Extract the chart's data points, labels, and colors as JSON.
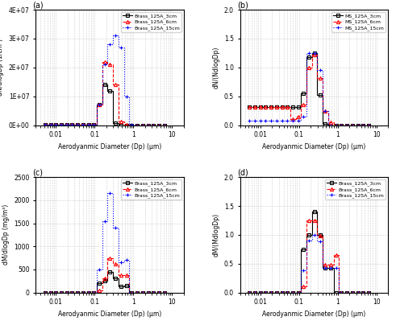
{
  "subplot_labels": [
    "(a)",
    "(b)",
    "(c)",
    "(d)"
  ],
  "xlabel": "Aerodyanmic Diameter (Dp) (μm)",
  "panel_a": {
    "ylabel": "dN/dlogDp (1/cm³)",
    "ylim": [
      0,
      40000000.0
    ],
    "yticks": [
      0,
      10000000.0,
      20000000.0,
      30000000.0,
      40000000.0
    ],
    "ytick_labels": [
      "0E+00",
      "1E+07",
      "2E+07",
      "3E+07",
      "4E+07"
    ],
    "series": {
      "3cm": {
        "label": "Brass_125A_3cm",
        "color": "black",
        "linestyle": "-",
        "marker": "s",
        "x": [
          0.00523,
          0.00722,
          0.00997,
          0.01376,
          0.019,
          0.02623,
          0.03622,
          0.05001,
          0.06903,
          0.09531,
          0.1316,
          0.1816,
          0.2507,
          0.3461,
          0.4779,
          0.6598,
          0.9108,
          1.257,
          1.736,
          2.397,
          3.31,
          4.568,
          6.309
        ],
        "y": [
          200000.0,
          200000.0,
          200000.0,
          200000.0,
          200000.0,
          200000.0,
          200000.0,
          200000.0,
          200000.0,
          200000.0,
          7000000.0,
          14000000.0,
          12000000.0,
          700000.0,
          0,
          0,
          0,
          0,
          0,
          0,
          0,
          0,
          0
        ]
      },
      "6cm": {
        "label": "Brass_125A_6cm",
        "color": "red",
        "linestyle": "--",
        "marker": "^",
        "x": [
          0.00523,
          0.00722,
          0.00997,
          0.01376,
          0.019,
          0.02623,
          0.03622,
          0.05001,
          0.06903,
          0.09531,
          0.1316,
          0.1816,
          0.2507,
          0.3461,
          0.4779,
          0.6598,
          0.9108,
          1.257,
          1.736,
          2.397,
          3.31,
          4.568,
          6.309
        ],
        "y": [
          200000.0,
          200000.0,
          200000.0,
          200000.0,
          200000.0,
          200000.0,
          200000.0,
          200000.0,
          200000.0,
          200000.0,
          7000000.0,
          22000000.0,
          21000000.0,
          14000000.0,
          1400000.0,
          200000.0,
          0,
          0,
          0,
          0,
          0,
          0,
          0
        ]
      },
      "15cm": {
        "label": "Brass_125A_15cm",
        "color": "blue",
        "linestyle": ":",
        "marker": "+",
        "x": [
          0.00523,
          0.00722,
          0.00997,
          0.01376,
          0.019,
          0.02623,
          0.03622,
          0.05001,
          0.06903,
          0.09531,
          0.1316,
          0.1816,
          0.2507,
          0.3461,
          0.4779,
          0.6598,
          0.9108,
          1.257,
          1.736,
          2.397,
          3.31,
          4.568,
          6.309
        ],
        "y": [
          200000.0,
          200000.0,
          200000.0,
          200000.0,
          200000.0,
          200000.0,
          200000.0,
          200000.0,
          200000.0,
          200000.0,
          7000000.0,
          21000000.0,
          28000000.0,
          31000000.0,
          27000000.0,
          10000000.0,
          300000.0,
          0,
          0,
          0,
          0,
          0,
          0
        ]
      }
    }
  },
  "panel_b": {
    "ylabel": "dN/(NdlogDp)",
    "ylim": [
      0,
      2.0
    ],
    "yticks": [
      0.0,
      0.5,
      1.0,
      1.5,
      2.0
    ],
    "series": {
      "3cm": {
        "label": "MS_125A_3cm",
        "color": "black",
        "linestyle": "-",
        "marker": "s",
        "x": [
          0.00523,
          0.00722,
          0.00997,
          0.01376,
          0.019,
          0.02623,
          0.03622,
          0.05001,
          0.06903,
          0.09531,
          0.1316,
          0.1816,
          0.2507,
          0.3461,
          0.4779,
          0.6598,
          0.9108,
          1.257,
          1.736,
          2.397,
          3.31,
          4.568,
          6.309
        ],
        "y": [
          0.32,
          0.32,
          0.32,
          0.32,
          0.32,
          0.32,
          0.32,
          0.32,
          0.32,
          0.32,
          0.55,
          1.18,
          1.25,
          0.52,
          0.02,
          0,
          0,
          0,
          0,
          0,
          0,
          0,
          0
        ]
      },
      "6cm": {
        "label": "MS_125A_6cm",
        "color": "red",
        "linestyle": "--",
        "marker": "^",
        "x": [
          0.00523,
          0.00722,
          0.00997,
          0.01376,
          0.019,
          0.02623,
          0.03622,
          0.05001,
          0.06903,
          0.09531,
          0.1316,
          0.1816,
          0.2507,
          0.3461,
          0.4779,
          0.6598,
          0.9108,
          1.257,
          1.736,
          2.397,
          3.31,
          4.568,
          6.309
        ],
        "y": [
          0.32,
          0.32,
          0.32,
          0.32,
          0.32,
          0.32,
          0.32,
          0.32,
          0.1,
          0.15,
          0.35,
          1.0,
          1.22,
          0.82,
          0.25,
          0.05,
          0,
          0,
          0,
          0,
          0,
          0,
          0
        ]
      },
      "15cm": {
        "label": "MS_125A_15cm",
        "color": "blue",
        "linestyle": ":",
        "marker": "+",
        "x": [
          0.00523,
          0.00722,
          0.00997,
          0.01376,
          0.019,
          0.02623,
          0.03622,
          0.05001,
          0.06903,
          0.09531,
          0.1316,
          0.1816,
          0.2507,
          0.3461,
          0.4779,
          0.6598,
          0.9108,
          1.257,
          1.736,
          2.397,
          3.31,
          4.568,
          6.309
        ],
        "y": [
          0.08,
          0.08,
          0.08,
          0.08,
          0.08,
          0.08,
          0.08,
          0.08,
          0.08,
          0.08,
          0.15,
          1.25,
          1.25,
          0.95,
          0.25,
          0.0,
          0,
          0,
          0,
          0,
          0,
          0,
          0
        ]
      }
    }
  },
  "panel_c": {
    "ylabel": "dM/dlogDp (mg/m³)",
    "ylim": [
      0,
      2500
    ],
    "yticks": [
      0,
      500,
      1000,
      1500,
      2000,
      2500
    ],
    "series": {
      "3cm": {
        "label": "Brass_125A_3cm",
        "color": "black",
        "linestyle": "-",
        "marker": "s",
        "x": [
          0.00523,
          0.00722,
          0.00997,
          0.01376,
          0.019,
          0.02623,
          0.03622,
          0.05001,
          0.06903,
          0.09531,
          0.1316,
          0.1816,
          0.2507,
          0.3461,
          0.4779,
          0.6598,
          0.9108,
          1.257,
          1.736,
          2.397,
          3.31,
          4.568,
          6.309
        ],
        "y": [
          0,
          0,
          0,
          0,
          0,
          0,
          0,
          0,
          0,
          0,
          200,
          250,
          450,
          300,
          125,
          150,
          0,
          0,
          0,
          0,
          0,
          0,
          0
        ]
      },
      "6cm": {
        "label": "Brass_125A_6cm",
        "color": "red",
        "linestyle": "--",
        "marker": "^",
        "x": [
          0.00523,
          0.00722,
          0.00997,
          0.01376,
          0.019,
          0.02623,
          0.03622,
          0.05001,
          0.06903,
          0.09531,
          0.1316,
          0.1816,
          0.2507,
          0.3461,
          0.4779,
          0.6598,
          0.9108,
          1.257,
          1.736,
          2.397,
          3.31,
          4.568,
          6.309
        ],
        "y": [
          0,
          0,
          0,
          0,
          0,
          0,
          0,
          0,
          0,
          0,
          50,
          300,
          750,
          620,
          380,
          380,
          0,
          0,
          0,
          0,
          0,
          0,
          0
        ]
      },
      "15cm": {
        "label": "Brass_125A_15cm",
        "color": "blue",
        "linestyle": ":",
        "marker": "+",
        "x": [
          0.00523,
          0.00722,
          0.00997,
          0.01376,
          0.019,
          0.02623,
          0.03622,
          0.05001,
          0.06903,
          0.09531,
          0.1316,
          0.1816,
          0.2507,
          0.3461,
          0.4779,
          0.6598,
          0.9108,
          1.257,
          1.736,
          2.397,
          3.31,
          4.568,
          6.309
        ],
        "y": [
          0,
          0,
          0,
          0,
          0,
          0,
          0,
          0,
          0,
          0,
          500,
          1550,
          2150,
          1400,
          650,
          700,
          0,
          0,
          0,
          0,
          0,
          0,
          0
        ]
      }
    }
  },
  "panel_d": {
    "ylabel": "dM/(MdlogDp)",
    "ylim": [
      0,
      2.0
    ],
    "yticks": [
      0.0,
      0.5,
      1.0,
      1.5,
      2.0
    ],
    "series": {
      "3cm": {
        "label": "Brass_125A_3cm",
        "color": "black",
        "linestyle": "-",
        "marker": "s",
        "x": [
          0.00523,
          0.00722,
          0.00997,
          0.01376,
          0.019,
          0.02623,
          0.03622,
          0.05001,
          0.06903,
          0.09531,
          0.1316,
          0.1816,
          0.2507,
          0.3461,
          0.4779,
          0.6598,
          0.9108,
          1.257,
          1.736,
          2.397,
          3.31,
          4.568,
          6.309
        ],
        "y": [
          0,
          0,
          0,
          0,
          0,
          0,
          0,
          0,
          0,
          0,
          0.75,
          1.0,
          1.4,
          1.0,
          0.42,
          0.42,
          0,
          0,
          0,
          0,
          0,
          0,
          0
        ]
      },
      "6cm": {
        "label": "Brass_125A_6cm",
        "color": "red",
        "linestyle": "--",
        "marker": "^",
        "x": [
          0.00523,
          0.00722,
          0.00997,
          0.01376,
          0.019,
          0.02623,
          0.03622,
          0.05001,
          0.06903,
          0.09531,
          0.1316,
          0.1816,
          0.2507,
          0.3461,
          0.4779,
          0.6598,
          0.9108,
          1.257,
          1.736,
          2.397,
          3.31,
          4.568,
          6.309
        ],
        "y": [
          0,
          0,
          0,
          0,
          0,
          0,
          0,
          0,
          0,
          0,
          0.1,
          1.25,
          1.25,
          0.98,
          0.48,
          0.48,
          0.65,
          0,
          0,
          0,
          0,
          0,
          0
        ]
      },
      "15cm": {
        "label": "Brass_125A_15cm",
        "color": "blue",
        "linestyle": ":",
        "marker": "+",
        "x": [
          0.00523,
          0.00722,
          0.00997,
          0.01376,
          0.019,
          0.02623,
          0.03622,
          0.05001,
          0.06903,
          0.09531,
          0.1316,
          0.1816,
          0.2507,
          0.3461,
          0.4779,
          0.6598,
          0.9108,
          1.257,
          1.736,
          2.397,
          3.31,
          4.568,
          6.309
        ],
        "y": [
          0,
          0,
          0,
          0,
          0,
          0,
          0,
          0,
          0,
          0,
          0.38,
          0.9,
          1.0,
          0.88,
          0.42,
          0.42,
          0.42,
          0,
          0,
          0,
          0,
          0,
          0
        ]
      }
    }
  }
}
